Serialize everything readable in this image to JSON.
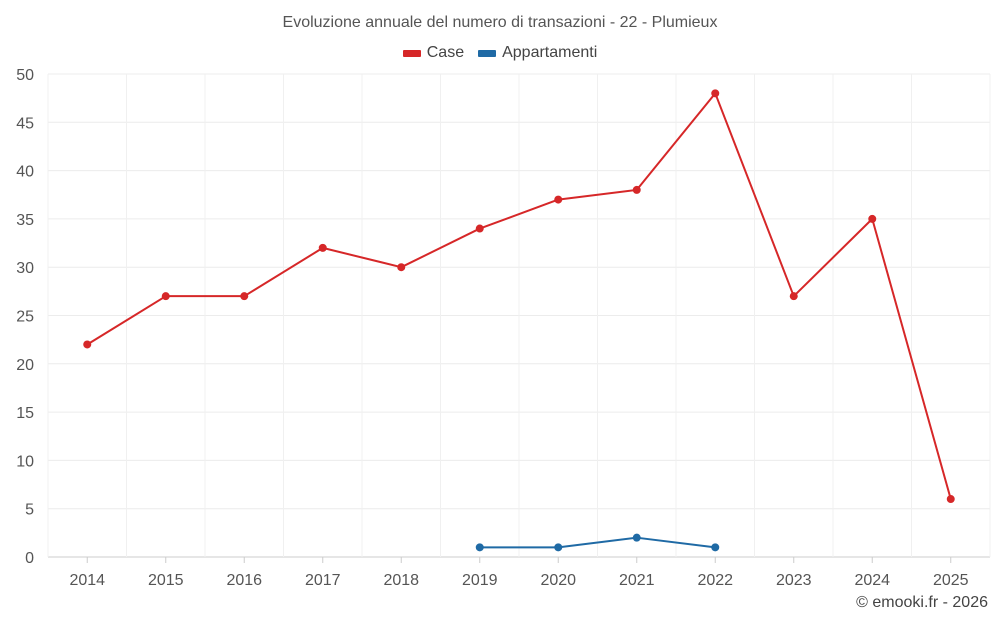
{
  "chart_data": {
    "type": "line",
    "title": "Evoluzione annuale del numero di transazioni - 22 - Plumieux",
    "categories": [
      "2014",
      "2015",
      "2016",
      "2017",
      "2018",
      "2019",
      "2020",
      "2021",
      "2022",
      "2023",
      "2024",
      "2025"
    ],
    "series": [
      {
        "name": "Case",
        "color": "#d62728",
        "values": [
          22,
          27,
          27,
          32,
          30,
          34,
          37,
          38,
          48,
          27,
          35,
          6
        ]
      },
      {
        "name": "Appartamenti",
        "color": "#1f6aa5",
        "values": [
          null,
          null,
          null,
          null,
          null,
          1,
          1,
          2,
          1,
          null,
          null,
          null
        ]
      }
    ],
    "yticks": [
      0,
      5,
      10,
      15,
      20,
      25,
      30,
      35,
      40,
      45,
      50
    ],
    "ylim": [
      0,
      50
    ],
    "xlabel": "",
    "ylabel": "",
    "grid": true,
    "legend_position": "top-center"
  },
  "footer": {
    "copyright": "© emooki.fr - 2026"
  }
}
